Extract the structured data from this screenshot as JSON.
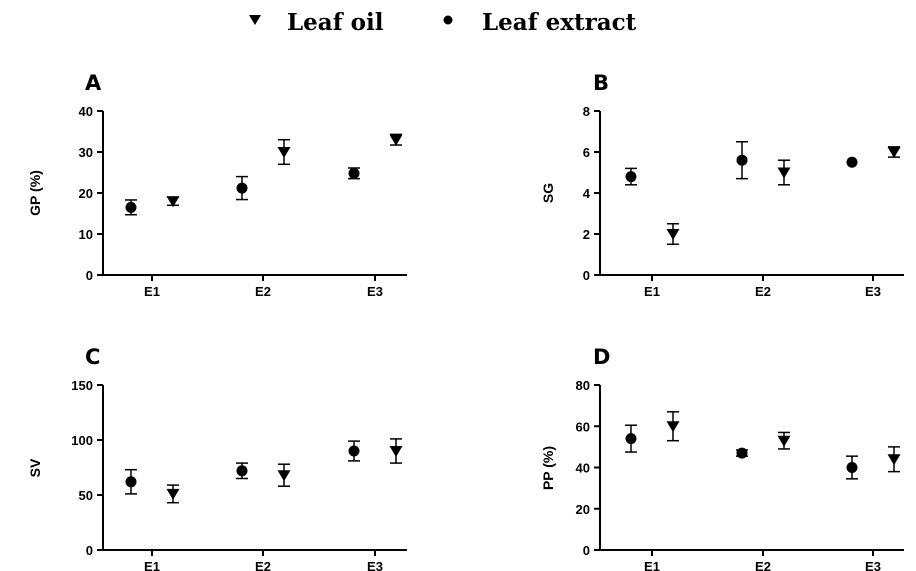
{
  "legend": {
    "items": [
      {
        "label": "Leaf oil",
        "marker": "triangle-down"
      },
      {
        "label": "Leaf extract",
        "marker": "circle"
      }
    ]
  },
  "chart_data": [
    {
      "panel": "A",
      "type": "scatter",
      "categories": [
        "E1",
        "E2",
        "E3"
      ],
      "ylabel": "GP (%)",
      "ylim": [
        0,
        40
      ],
      "yticks": [
        0,
        10,
        20,
        30,
        40
      ],
      "series": [
        {
          "name": "Leaf extract",
          "marker": "circle",
          "values": [
            16.5,
            21.2,
            24.8
          ],
          "errors": [
            1.8,
            2.8,
            1.3
          ]
        },
        {
          "name": "Leaf oil",
          "marker": "triangle-down",
          "values": [
            18.0,
            30.0,
            33.0
          ],
          "errors": [
            1.0,
            3.0,
            1.3
          ]
        }
      ]
    },
    {
      "panel": "B",
      "type": "scatter",
      "categories": [
        "E1",
        "E2",
        "E3"
      ],
      "ylabel": "SG",
      "ylim": [
        0,
        8
      ],
      "yticks": [
        0,
        2,
        4,
        6,
        8
      ],
      "series": [
        {
          "name": "Leaf extract",
          "marker": "circle",
          "values": [
            4.8,
            5.6,
            5.5
          ],
          "errors": [
            0.4,
            0.9,
            0
          ]
        },
        {
          "name": "Leaf oil",
          "marker": "triangle-down",
          "values": [
            2.0,
            5.0,
            6.0
          ],
          "errors": [
            0.5,
            0.6,
            0.25
          ]
        }
      ]
    },
    {
      "panel": "C",
      "type": "scatter",
      "categories": [
        "E1",
        "E2",
        "E3"
      ],
      "ylabel": "SV",
      "ylim": [
        0,
        150
      ],
      "yticks": [
        0,
        50,
        100,
        150
      ],
      "series": [
        {
          "name": "Leaf extract",
          "marker": "circle",
          "values": [
            62,
            72,
            90
          ],
          "errors": [
            11,
            7,
            9
          ]
        },
        {
          "name": "Leaf oil",
          "marker": "triangle-down",
          "values": [
            51,
            68,
            90
          ],
          "errors": [
            8,
            10,
            11
          ]
        }
      ]
    },
    {
      "panel": "D",
      "type": "scatter",
      "categories": [
        "E1",
        "E2",
        "E3"
      ],
      "ylabel": "PP (%)",
      "ylim": [
        0,
        80
      ],
      "yticks": [
        0,
        20,
        40,
        60,
        80
      ],
      "series": [
        {
          "name": "Leaf extract",
          "marker": "circle",
          "values": [
            54,
            47,
            40
          ],
          "errors": [
            6.5,
            1.5,
            5.5
          ]
        },
        {
          "name": "Leaf oil",
          "marker": "triangle-down",
          "values": [
            60,
            53,
            44
          ],
          "errors": [
            7,
            4,
            6
          ]
        }
      ]
    }
  ]
}
